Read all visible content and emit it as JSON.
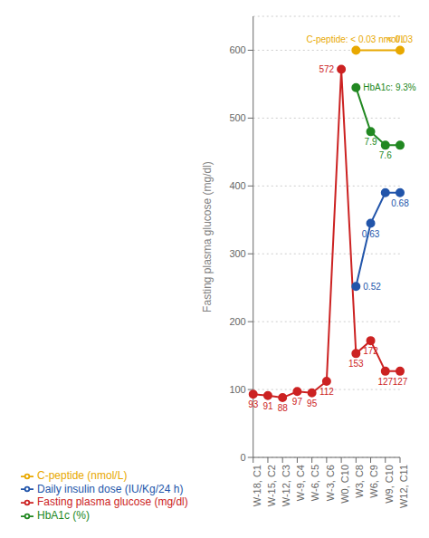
{
  "chart_data": {
    "type": "line",
    "categories": [
      "W-18, C1",
      "W-15, C2",
      "W-12, C3",
      "W-9, C4",
      "W-6, C5",
      "W-3, C6",
      "W0, C10",
      "W3, C8",
      "W6, C9",
      "W9, C10",
      "W12, C11"
    ],
    "ylabel": "Fasting plasma glucose (mg/dl)",
    "ylim": [
      0,
      650
    ],
    "yticks": [
      0,
      100,
      200,
      300,
      400,
      500,
      600
    ],
    "grid": true,
    "legend": "bottom",
    "series": [
      {
        "name": "Fasting plasma glucose (mg/dl)",
        "color": "#cc2222",
        "marker": "circle",
        "data_labels": true,
        "values": [
          93,
          91,
          88,
          97,
          95,
          112,
          572,
          153,
          172,
          127,
          127
        ]
      },
      {
        "name": "C-peptide (nmol/L)",
        "color": "#e8a800",
        "marker": "circle",
        "values": [
          null,
          null,
          null,
          null,
          null,
          null,
          null,
          600,
          null,
          null,
          600
        ]
      },
      {
        "name": "Daily insulin dose (IU/Kg/24 h)",
        "color": "#2255aa",
        "marker": "circle",
        "values": [
          null,
          null,
          null,
          null,
          null,
          null,
          null,
          252,
          345,
          390,
          390
        ]
      },
      {
        "name": "HbA1c (%)",
        "color": "#228822",
        "marker": "circle",
        "values": [
          null,
          null,
          null,
          null,
          null,
          null,
          null,
          545,
          480,
          460,
          460
        ]
      }
    ],
    "annotations": [
      {
        "text": "C-peptide: < 0.03 nmol/L",
        "x": "W3, C8",
        "y": 600,
        "color": "#e8a800"
      },
      {
        "text": "< 0.03",
        "x": "W12, C11",
        "y": 600,
        "color": "#e8a800"
      },
      {
        "text": "0.52",
        "x": "W3, C8",
        "y": 252,
        "color": "#2255aa"
      },
      {
        "text": "0.63",
        "x": "W6, C9",
        "y": 345,
        "color": "#2255aa"
      },
      {
        "text": "0.68",
        "x": "W12, C11",
        "y": 390,
        "color": "#2255aa"
      },
      {
        "text": "HbA1c: 9.3%",
        "x": "W3, C8",
        "y": 545,
        "color": "#228822"
      },
      {
        "text": "7.9",
        "x": "W6, C9",
        "y": 480,
        "color": "#228822"
      },
      {
        "text": "7.6",
        "x": "W9, C10",
        "y": 460,
        "color": "#228822"
      }
    ]
  }
}
